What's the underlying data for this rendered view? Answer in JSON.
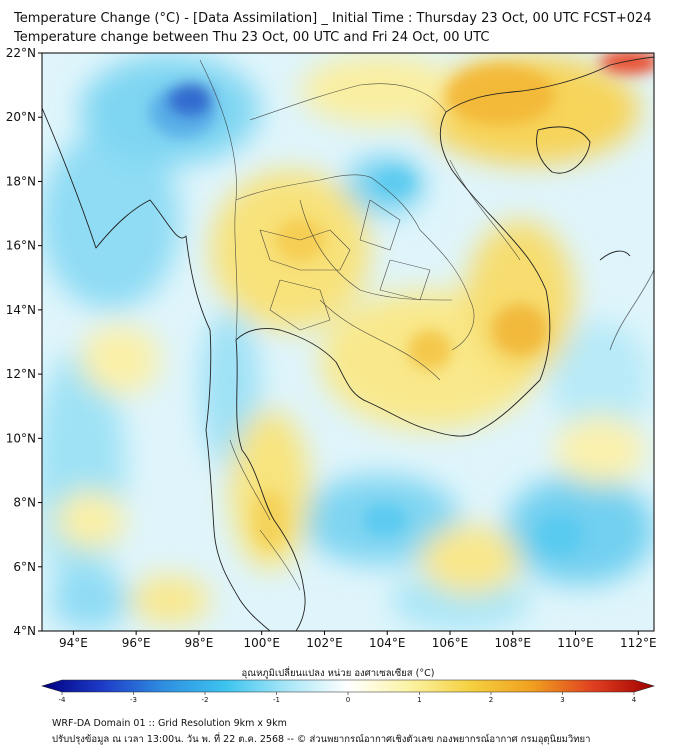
{
  "header": {
    "title_line1": "Temperature Change (°C) - [Data Assimilation] _ Initial Time : Thursday 23 Oct, 00 UTC FCST+024",
    "title_line2": "Temperature change between Thu 23 Oct, 00 UTC and Fri 24 Oct, 00 UTC"
  },
  "map": {
    "lat_ticks": [
      "22°N",
      "20°N",
      "18°N",
      "16°N",
      "14°N",
      "12°N",
      "10°N",
      "8°N",
      "6°N",
      "4°N"
    ],
    "lon_ticks": [
      "94°E",
      "96°E",
      "98°E",
      "100°E",
      "102°E",
      "104°E",
      "106°E",
      "108°E",
      "110°E",
      "112°E"
    ],
    "lat_range": [
      4,
      22
    ],
    "lon_range": [
      93,
      112.5
    ],
    "colors": {
      "cold_deep": "#1a33b0",
      "cold": "#3cc4ef",
      "cool": "#a8e6f7",
      "neutral": "#f2fbfd",
      "warm_light": "#fbf3a4",
      "warm": "#f5d040",
      "hot": "#f0a020",
      "very_hot": "#e8402a"
    }
  },
  "colorbar": {
    "label": "อุณหภูมิเปลี่ยนแปลง หน่วย องศาเซลเซียส (°C)",
    "min": -4,
    "max": 4,
    "tick_labels": [
      "-4",
      "-3",
      "-2",
      "-1",
      "0",
      "1",
      "2",
      "3",
      "4"
    ],
    "stops": [
      "#000080",
      "#1e3cc8",
      "#2f8fe0",
      "#3cc4ef",
      "#a8e6f7",
      "#ffffff",
      "#fbf3a4",
      "#f5d040",
      "#f0a020",
      "#e04020",
      "#a00000"
    ]
  },
  "footer": {
    "line1": "WRF-DA Domain 01 :: Grid Resolution 9km x 9km",
    "line2": "ปรับปรุงข้อมูล ณ เวลา 13:00น. วัน พ. ที่ 22 ต.ค. 2568 -- © ส่วนพยากรณ์อากาศเชิงตัวเลข กองพยากรณ์อากาศ กรมอุตุนิยมวิทยา"
  }
}
